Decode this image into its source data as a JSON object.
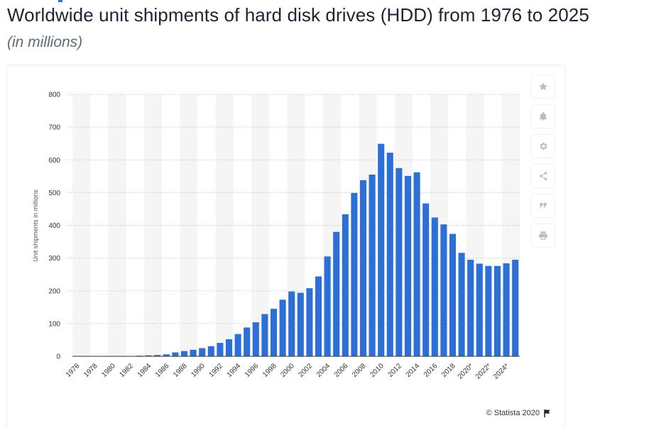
{
  "header": {
    "title": "Worldwide unit shipments of hard disk drives (HDD) from 1976 to 2025",
    "subtitle": "(in millions)"
  },
  "toolbar": {
    "buttons": [
      {
        "name": "favorite",
        "icon": "star-icon"
      },
      {
        "name": "notification",
        "icon": "bell-icon"
      },
      {
        "name": "settings",
        "icon": "gear-icon"
      },
      {
        "name": "share",
        "icon": "share-icon"
      },
      {
        "name": "cite",
        "icon": "quote-icon"
      },
      {
        "name": "print",
        "icon": "print-icon"
      }
    ]
  },
  "footer": {
    "credit": "© Statista 2020",
    "credit_icon": "flag-icon"
  },
  "colors": {
    "bar": "#2c6fd6",
    "stripe": "#f5f5f5",
    "grid": "#bfbfbf"
  },
  "chart_data": {
    "type": "bar",
    "ylabel": "Unit shipments in millions",
    "xlabel": "",
    "ylim": [
      0,
      800
    ],
    "yticks": [
      0,
      100,
      200,
      300,
      400,
      500,
      600,
      700,
      800
    ],
    "grid": true,
    "categories": [
      "1976",
      "1977",
      "1978",
      "1979",
      "1980",
      "1981",
      "1982",
      "1983",
      "1984",
      "1985",
      "1986",
      "1987",
      "1988",
      "1989",
      "1990",
      "1991",
      "1992",
      "1993",
      "1994",
      "1995",
      "1996",
      "1997",
      "1998",
      "1999",
      "2000",
      "2001",
      "2002",
      "2003",
      "2004",
      "2005",
      "2006",
      "2007",
      "2008",
      "2009",
      "2010",
      "2011",
      "2012",
      "2013",
      "2014",
      "2015",
      "2016",
      "2017",
      "2018",
      "2019",
      "2020*",
      "2021*",
      "2022*",
      "2023*",
      "2024*",
      "2025*"
    ],
    "tick_labels": [
      "1976",
      "1978",
      "1980",
      "1982",
      "1984",
      "1986",
      "1988",
      "1990",
      "1992",
      "1994",
      "1996",
      "1998",
      "2000",
      "2002",
      "2004",
      "2006",
      "2008",
      "2010",
      "2012",
      "2014",
      "2016",
      "2018",
      "2020*",
      "2022*",
      "2024*"
    ],
    "values": [
      0.1,
      0.2,
      0.3,
      0.5,
      0.6,
      0.8,
      1,
      2,
      3,
      4,
      6,
      12,
      16,
      20,
      25,
      31,
      41,
      52,
      68,
      88,
      104,
      129,
      145,
      173,
      198,
      194,
      208,
      244,
      305,
      380,
      434,
      499,
      538,
      555,
      649,
      622,
      575,
      551,
      562,
      467,
      424,
      403,
      374,
      316,
      295,
      283,
      276,
      276,
      284,
      295
    ]
  }
}
